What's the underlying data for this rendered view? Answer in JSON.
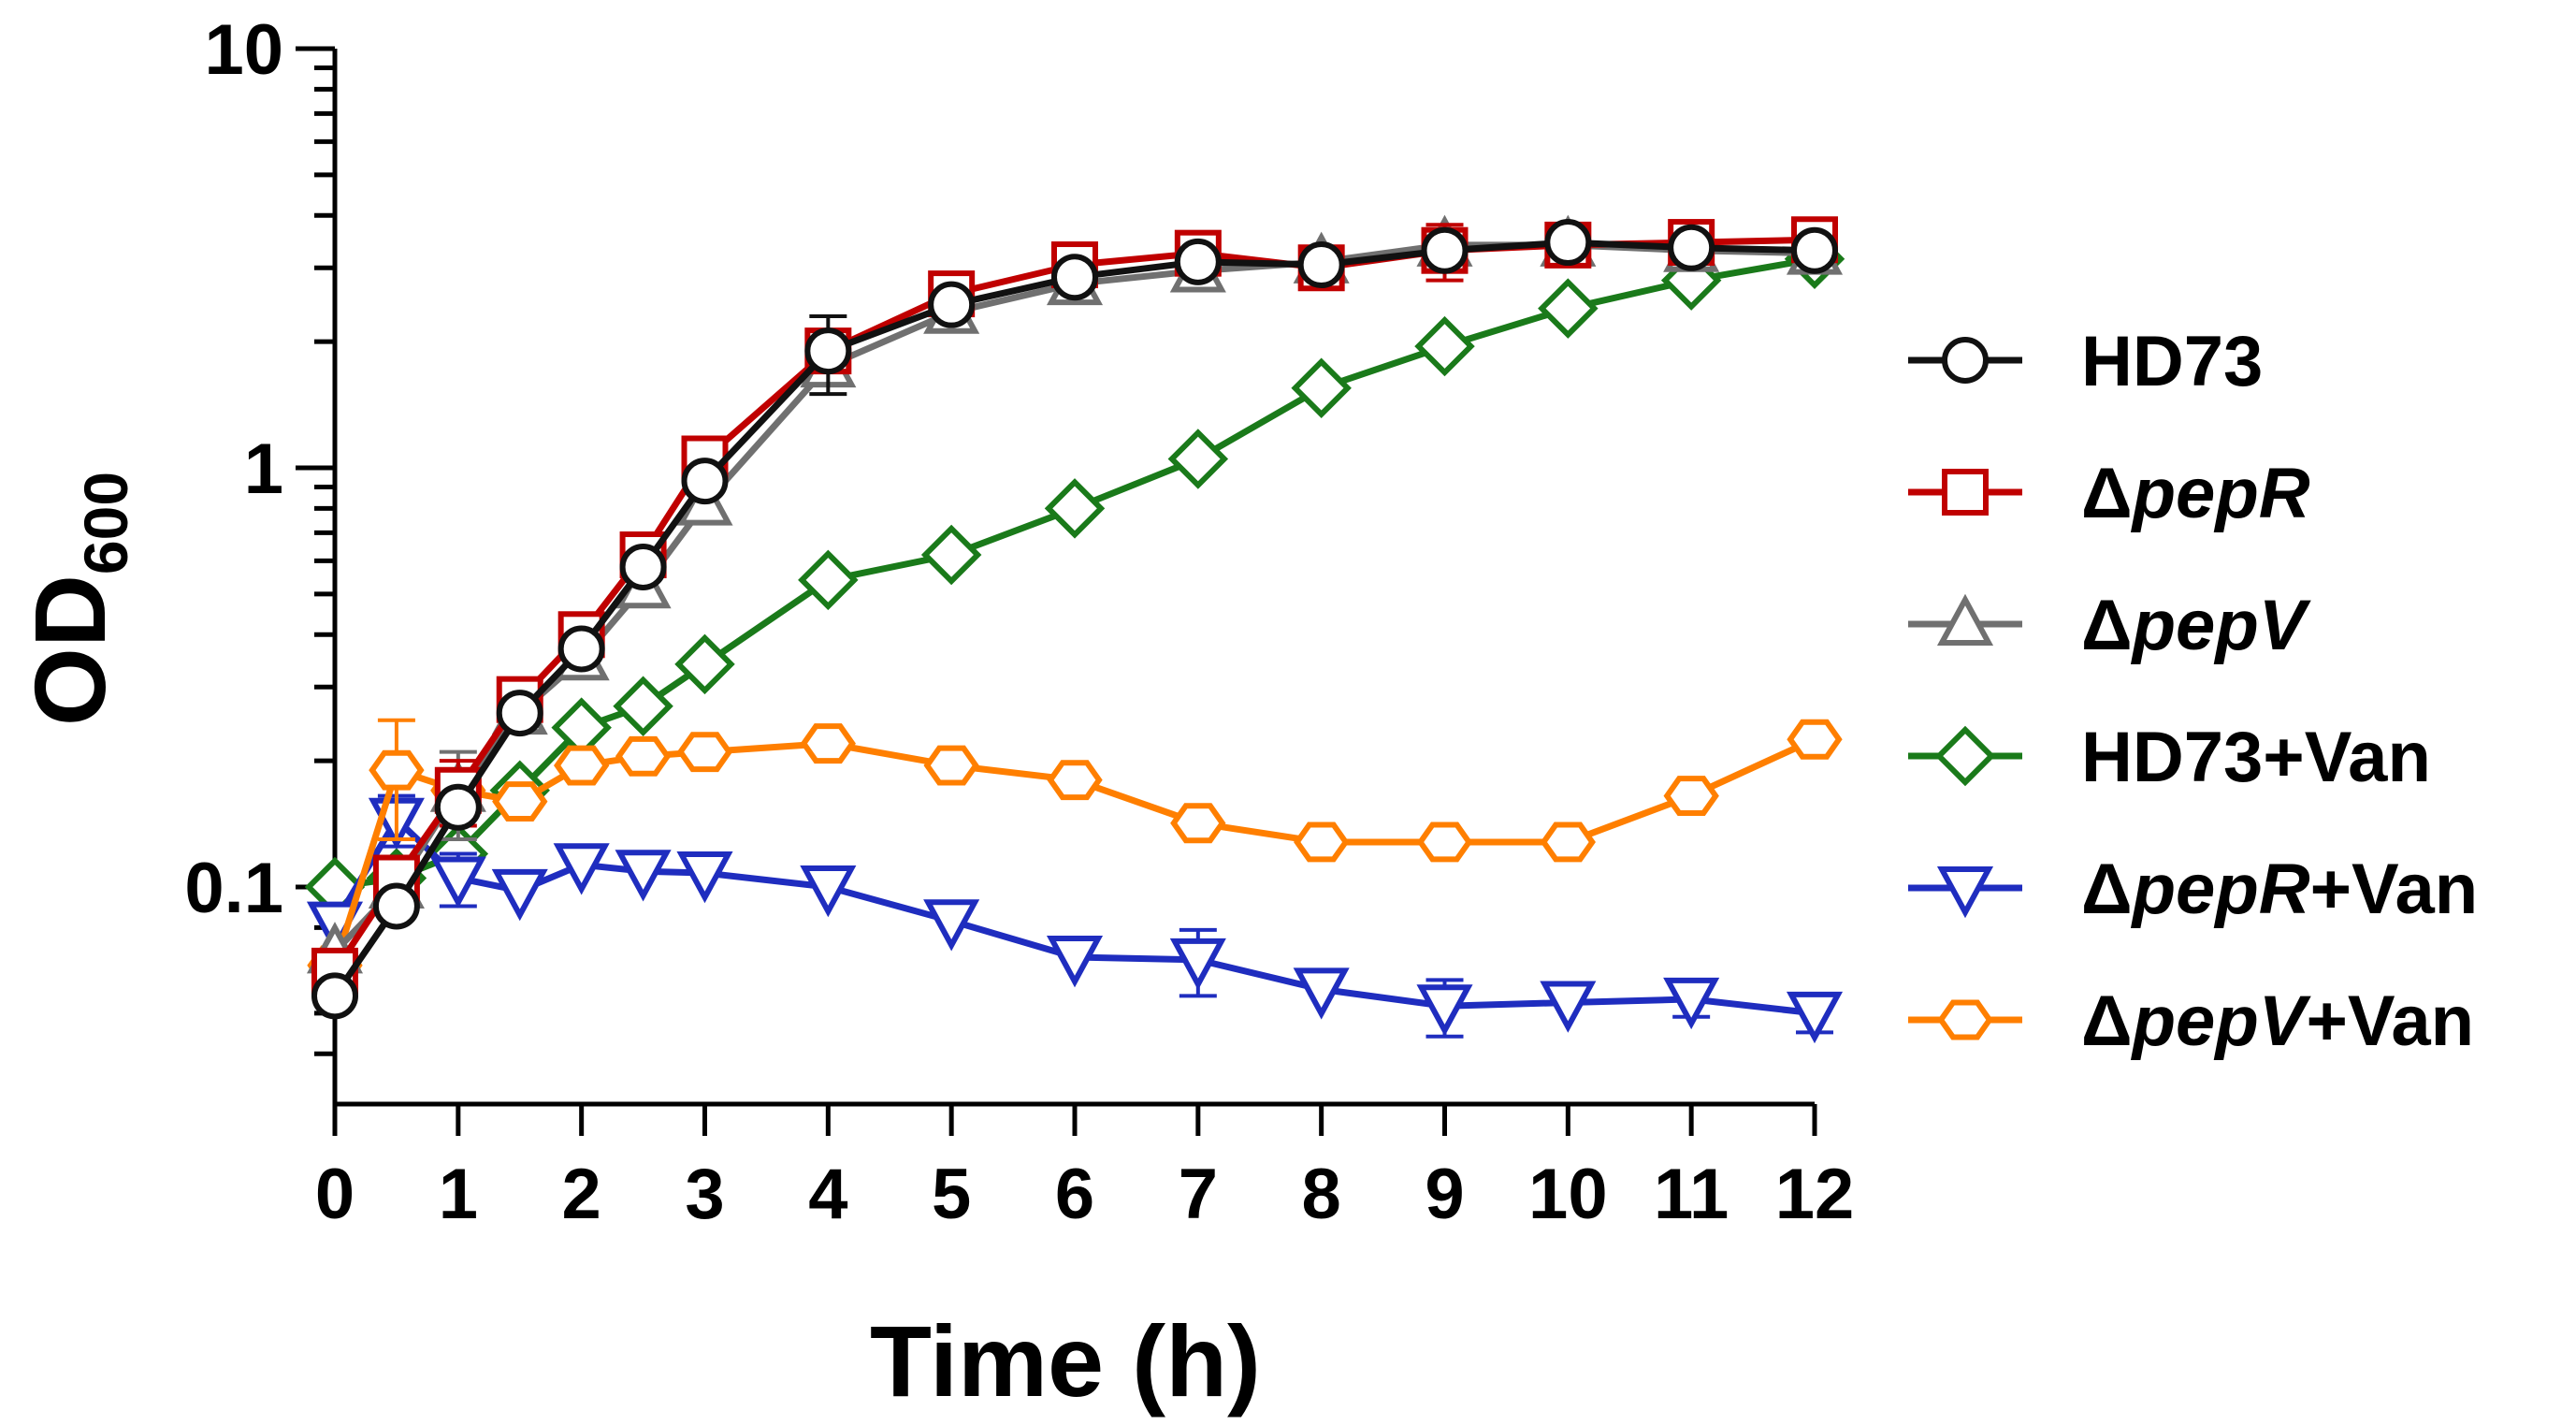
{
  "chart_data": {
    "type": "line",
    "title": "",
    "xlabel": "Time (h)",
    "ylabel_main": "OD",
    "ylabel_sub": "600",
    "xlim": [
      0,
      12
    ],
    "ylim": [
      0.035,
      10
    ],
    "yscale": "log",
    "x_ticks": [
      0,
      1,
      2,
      3,
      4,
      5,
      6,
      7,
      8,
      9,
      10,
      11,
      12
    ],
    "x_tick_labels": [
      "0",
      "1",
      "2",
      "3",
      "4",
      "5",
      "6",
      "7",
      "8",
      "9",
      "10",
      "11",
      "12"
    ],
    "y_ticks": [
      0.1,
      1,
      10
    ],
    "y_tick_labels": [
      "0.1",
      "1",
      "10"
    ],
    "legend_position": "right",
    "series": [
      {
        "name": "HD73",
        "label_parts": [
          {
            "t": "HD73",
            "i": false
          }
        ],
        "color": "#111111",
        "marker": "circle",
        "x": [
          0,
          0.5,
          1,
          1.5,
          2,
          2.5,
          3,
          4,
          5,
          6,
          7,
          8,
          9,
          10,
          11,
          12
        ],
        "y": [
          0.055,
          0.09,
          0.155,
          0.26,
          0.37,
          0.58,
          0.93,
          1.9,
          2.45,
          2.85,
          3.1,
          3.05,
          3.3,
          3.45,
          3.35,
          3.3
        ],
        "err": [
          0,
          0,
          0,
          0,
          0,
          0,
          0,
          0.4,
          0,
          0,
          0,
          0,
          0,
          0,
          0,
          0
        ]
      },
      {
        "name": "ΔpepR",
        "label_parts": [
          {
            "t": "Δ",
            "i": false
          },
          {
            "t": "pepR",
            "i": true
          }
        ],
        "color": "#c00000",
        "marker": "square",
        "x": [
          0,
          0.5,
          1,
          1.5,
          2,
          2.5,
          3,
          4,
          5,
          6,
          7,
          8,
          9,
          10,
          11,
          12
        ],
        "y": [
          0.063,
          0.105,
          0.17,
          0.28,
          0.4,
          0.62,
          1.05,
          1.9,
          2.6,
          3.05,
          3.25,
          3.0,
          3.3,
          3.4,
          3.45,
          3.5
        ],
        "err": [
          0,
          0,
          0.03,
          0,
          0,
          0,
          0,
          0,
          0,
          0,
          0,
          0,
          0.5,
          0,
          0,
          0
        ]
      },
      {
        "name": "ΔpepV",
        "label_parts": [
          {
            "t": "Δ",
            "i": false
          },
          {
            "t": "pepV",
            "i": true
          }
        ],
        "color": "#707070",
        "marker": "triangle-up",
        "x": [
          0,
          0.5,
          1,
          1.5,
          2,
          2.5,
          3,
          4,
          5,
          6,
          7,
          8,
          9,
          10,
          11,
          12
        ],
        "y": [
          0.07,
          0.1,
          0.17,
          0.26,
          0.35,
          0.52,
          0.82,
          1.75,
          2.35,
          2.75,
          2.95,
          3.1,
          3.4,
          3.4,
          3.3,
          3.25
        ],
        "err": [
          0,
          0,
          0.04,
          0,
          0,
          0,
          0,
          0,
          0,
          0,
          0,
          0,
          0,
          0,
          0,
          0
        ]
      },
      {
        "name": "HD73+Van",
        "label_parts": [
          {
            "t": "HD73+Van",
            "i": false
          }
        ],
        "color": "#1a7a1a",
        "marker": "diamond",
        "x": [
          0,
          0.5,
          1,
          1.5,
          2,
          2.5,
          3,
          4,
          5,
          6,
          7,
          8,
          9,
          10,
          11,
          12
        ],
        "y": [
          0.1,
          0.105,
          0.12,
          0.17,
          0.24,
          0.27,
          0.34,
          0.54,
          0.62,
          0.8,
          1.05,
          1.55,
          1.95,
          2.4,
          2.8,
          3.15
        ],
        "err": [
          0,
          0,
          0,
          0,
          0,
          0,
          0,
          0,
          0,
          0,
          0,
          0,
          0,
          0,
          0,
          0
        ]
      },
      {
        "name": "ΔpepR+Van",
        "label_parts": [
          {
            "t": "Δ",
            "i": false
          },
          {
            "t": "pepR",
            "i": true
          },
          {
            "t": "+Van",
            "i": false
          }
        ],
        "color": "#1f2dbf",
        "marker": "triangle-down",
        "x": [
          0,
          0.5,
          1,
          1.5,
          2,
          2.5,
          3,
          4,
          5,
          6,
          7,
          8,
          9,
          10,
          11,
          12
        ],
        "y": [
          0.082,
          0.145,
          0.105,
          0.098,
          0.113,
          0.109,
          0.108,
          0.1,
          0.083,
          0.068,
          0.067,
          0.057,
          0.052,
          0.053,
          0.054,
          0.05
        ],
        "err": [
          0,
          0.02,
          0.015,
          0,
          0,
          0,
          0,
          0,
          0,
          0,
          0.012,
          0,
          0.008,
          0,
          0.005,
          0.005
        ]
      },
      {
        "name": "ΔpepV+Van",
        "label_parts": [
          {
            "t": "Δ",
            "i": false
          },
          {
            "t": "pepV",
            "i": true
          },
          {
            "t": "+Van",
            "i": false
          }
        ],
        "color": "#ff7f00",
        "marker": "hexagon",
        "x": [
          0,
          0.5,
          1,
          1.5,
          2,
          2.5,
          3,
          4,
          5,
          6,
          7,
          8,
          9,
          10,
          11,
          12
        ],
        "y": [
          0.065,
          0.19,
          0.17,
          0.16,
          0.195,
          0.205,
          0.21,
          0.22,
          0.195,
          0.18,
          0.142,
          0.128,
          0.128,
          0.128,
          0.165,
          0.225
        ],
        "err": [
          0,
          0.06,
          0,
          0,
          0,
          0,
          0,
          0,
          0,
          0,
          0,
          0,
          0,
          0,
          0,
          0
        ]
      }
    ]
  }
}
